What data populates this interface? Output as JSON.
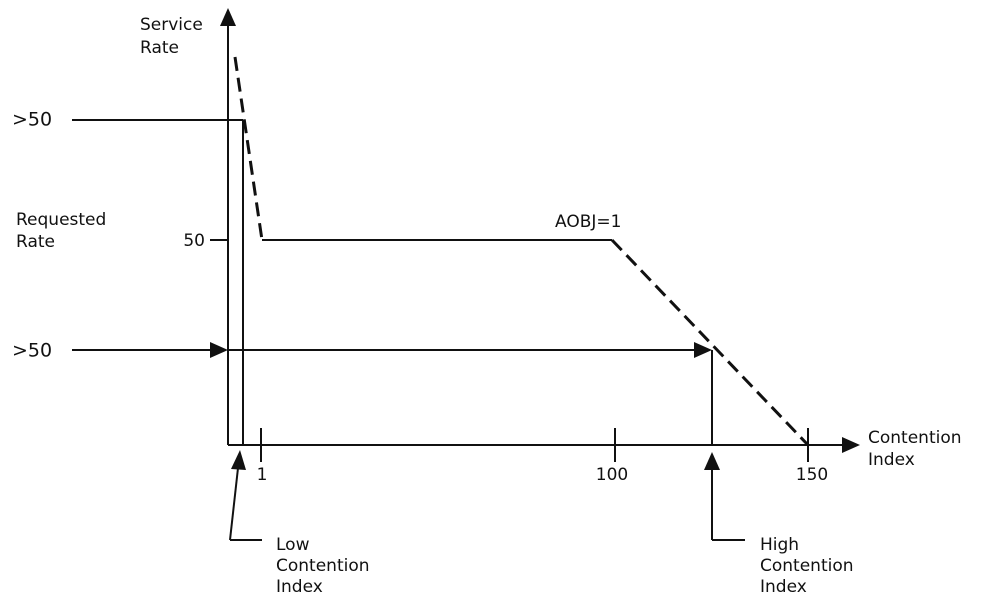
{
  "axes": {
    "y_label": [
      "Service",
      "Rate"
    ],
    "x_label": [
      "Contention",
      "Index"
    ]
  },
  "y_tick": "50",
  "x_ticks": [
    "1",
    "100",
    "150"
  ],
  "requested": {
    "label": [
      "Requested",
      "Rate"
    ],
    "upper": ">50",
    "lower": ">50"
  },
  "curve_label": "AOBJ=1",
  "callouts": {
    "low": [
      "Low",
      "Contention",
      "Index"
    ],
    "high": [
      "High",
      "Contention",
      "Index"
    ]
  }
}
